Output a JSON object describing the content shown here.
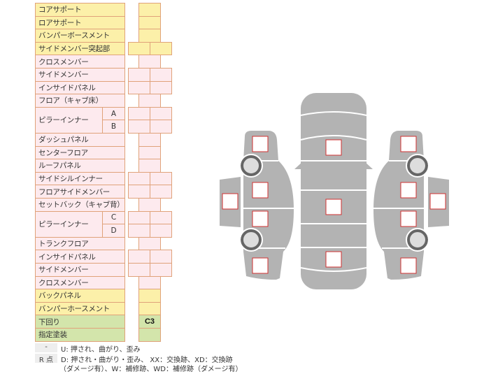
{
  "colors": {
    "yellow": "#fcf0a9",
    "pink": "#fdeaee",
    "green": "#d3e5ab",
    "border": "#e0a27a",
    "panel": "#b3b3b3",
    "marker": "#d03030"
  },
  "rows": [
    {
      "label": "コアサポート",
      "color": "yellow",
      "cells": "single"
    },
    {
      "label": "ロアサポート",
      "color": "yellow",
      "cells": "single"
    },
    {
      "label": "バンパーボースメント",
      "color": "yellow",
      "cells": "single"
    },
    {
      "label": "サイドメンバー突起部",
      "color": "yellow",
      "cells": "double"
    },
    {
      "label": "クロスメンバー",
      "color": "pink",
      "cells": "single"
    },
    {
      "label": "サイドメンバー",
      "color": "pink",
      "cells": "double"
    },
    {
      "label": "インサイドパネル",
      "color": "pink",
      "cells": "double"
    },
    {
      "label": "フロア（キャブ床）",
      "color": "pink",
      "cells": "single"
    },
    {
      "label": "ピラーインナー",
      "sub": "A",
      "color": "pink",
      "cells": "double",
      "group_start": true
    },
    {
      "label": "",
      "sub": "B",
      "color": "pink",
      "cells": "double"
    },
    {
      "label": "ダッシュパネル",
      "color": "pink",
      "cells": "single"
    },
    {
      "label": "センターフロア",
      "color": "pink",
      "cells": "single"
    },
    {
      "label": "ルーフパネル",
      "color": "pink",
      "cells": "single"
    },
    {
      "label": "サイドシルインナー",
      "color": "pink",
      "cells": "double"
    },
    {
      "label": "フロアサイドメンバー",
      "color": "pink",
      "cells": "double"
    },
    {
      "label": "セットバック（キャブ背）",
      "color": "pink",
      "cells": "single"
    },
    {
      "label": "ピラーインナー",
      "sub": "C",
      "color": "pink",
      "cells": "double",
      "group_start": true
    },
    {
      "label": "",
      "sub": "D",
      "color": "pink",
      "cells": "double"
    },
    {
      "label": "トランクフロア",
      "color": "pink",
      "cells": "single"
    },
    {
      "label": "インサイドパネル",
      "color": "pink",
      "cells": "double"
    },
    {
      "label": "サイドメンバー",
      "color": "pink",
      "cells": "double"
    },
    {
      "label": "クロスメンバー",
      "color": "pink",
      "cells": "single"
    },
    {
      "label": "バックパネル",
      "color": "yellow",
      "cells": "single"
    },
    {
      "label": "バンパーホースメント",
      "color": "yellow",
      "cells": "single"
    },
    {
      "label": "下回り",
      "color": "green",
      "cells": "single",
      "value": "C3"
    },
    {
      "label": "指定塗装",
      "color": "green",
      "cells": "single"
    }
  ],
  "legend": {
    "key1": "-",
    "text1": "U: 押され、曲がり、歪み",
    "key2": "R 点",
    "text2": "D: 押され・曲がり・歪み、 XX：交換跡、XD：交換跡",
    "text3": "（ダメージ有）、W：補修跡、WD：補修跡（ダメージ有）"
  }
}
